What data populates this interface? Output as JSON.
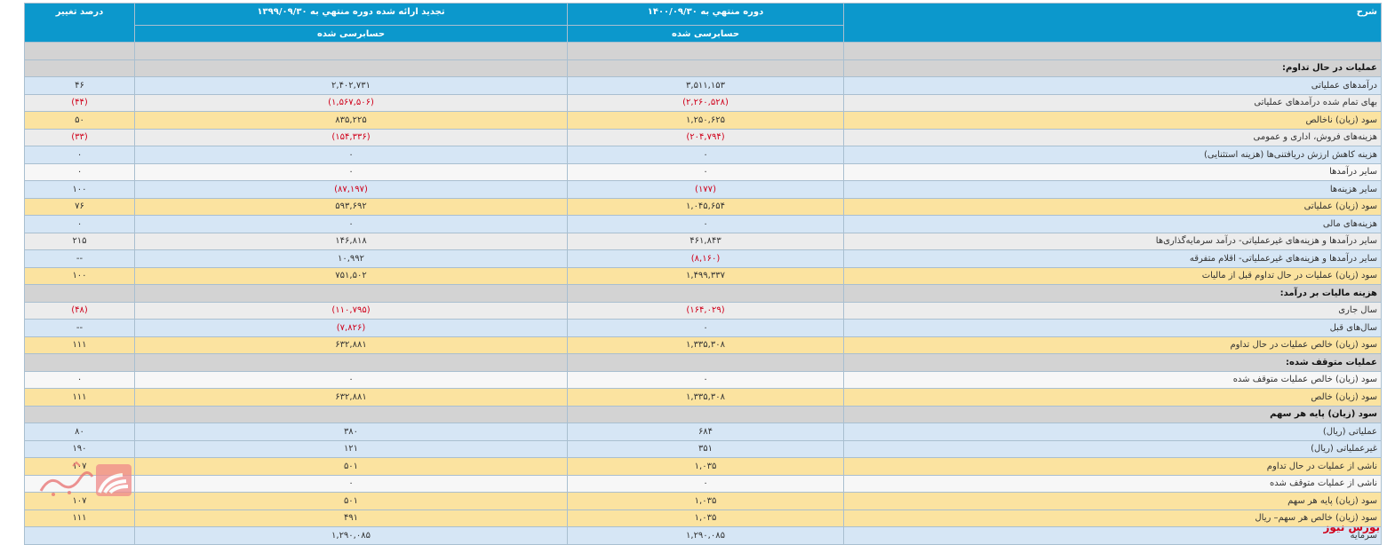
{
  "headers": {
    "desc": "شرح",
    "current_period": "دوره منتهي به ۱۴۰۰/۰۹/۳۰",
    "current_audit": "حسابرسی شده",
    "prev_period": "تجدید ارائه شده دوره منتهي به ۱۳۹۹/۰۹/۳۰",
    "prev_audit": "حسابرسی شده",
    "change_pct": "درصد تغییر"
  },
  "rows": [
    {
      "type": "section",
      "label": ""
    },
    {
      "type": "section",
      "label": "عملیات در حال تداوم:"
    },
    {
      "type": "blue",
      "label": "درآمدهای عملیاتی",
      "cur": "۳,۵۱۱,۱۵۳",
      "prev": "۲,۴۰۲,۷۳۱",
      "chg": "۴۶"
    },
    {
      "type": "gray",
      "label": "بهای تمام شده درآمدهای عملیاتی",
      "cur": "(۲,۲۶۰,۵۲۸)",
      "prev": "(۱,۵۶۷,۵۰۶)",
      "chg": "(۴۴)"
    },
    {
      "type": "yel",
      "label": "سود (زیان) ناخالص",
      "cur": "۱,۲۵۰,۶۲۵",
      "prev": "۸۳۵,۲۲۵",
      "chg": "۵۰"
    },
    {
      "type": "gray",
      "label": "هزینه‌های فروش، اداری و عمومی",
      "cur": "(۲۰۴,۷۹۴)",
      "prev": "(۱۵۴,۳۳۶)",
      "chg": "(۳۳)"
    },
    {
      "type": "blue",
      "label": "هزینه کاهش ارزش دریافتنی‌ها (هزینه استثنایی)",
      "cur": "۰",
      "prev": "۰",
      "chg": "۰"
    },
    {
      "type": "white",
      "label": "سایر درآمدها",
      "cur": "۰",
      "prev": "۰",
      "chg": "۰"
    },
    {
      "type": "blue",
      "label": "سایر هزینه‌ها",
      "cur": "(۱۷۷)",
      "prev": "(۸۷,۱۹۷)",
      "chg": "۱۰۰"
    },
    {
      "type": "yel",
      "label": "سود (زیان) عملیاتی",
      "cur": "۱,۰۴۵,۶۵۴",
      "prev": "۵۹۳,۶۹۲",
      "chg": "۷۶"
    },
    {
      "type": "blue",
      "label": "هزینه‌های مالی",
      "cur": "۰",
      "prev": "۰",
      "chg": "۰"
    },
    {
      "type": "gray",
      "label": "سایر درآمدها و هزینه‌های غیرعملیاتی- درآمد سرمایه‌گذاری‌ها",
      "cur": "۴۶۱,۸۴۳",
      "prev": "۱۴۶,۸۱۸",
      "chg": "۲۱۵"
    },
    {
      "type": "blue",
      "label": "سایر درآمدها و هزینه‌های غیرعملیاتی- اقلام متفرقه",
      "cur": "(۸,۱۶۰)",
      "prev": "۱۰,۹۹۲",
      "chg": "--"
    },
    {
      "type": "yel",
      "label": "سود (زیان) عملیات در حال تداوم قبل از مالیات",
      "cur": "۱,۴۹۹,۳۳۷",
      "prev": "۷۵۱,۵۰۲",
      "chg": "۱۰۰"
    },
    {
      "type": "section",
      "label": "هزینه مالیات بر درآمد:"
    },
    {
      "type": "gray",
      "label": "سال جاری",
      "cur": "(۱۶۴,۰۲۹)",
      "prev": "(۱۱۰,۷۹۵)",
      "chg": "(۴۸)"
    },
    {
      "type": "blue",
      "label": "سال‌های قبل",
      "cur": "۰",
      "prev": "(۷,۸۲۶)",
      "chg": "--"
    },
    {
      "type": "yel",
      "label": "سود (زیان) خالص عملیات در حال تداوم",
      "cur": "۱,۳۳۵,۳۰۸",
      "prev": "۶۳۲,۸۸۱",
      "chg": "۱۱۱"
    },
    {
      "type": "section",
      "label": "عملیات متوقف شده:"
    },
    {
      "type": "white",
      "label": "سود (زیان) خالص عملیات متوقف شده",
      "cur": "۰",
      "prev": "۰",
      "chg": "۰"
    },
    {
      "type": "yel",
      "label": "سود (زیان) خالص",
      "cur": "۱,۳۳۵,۳۰۸",
      "prev": "۶۳۲,۸۸۱",
      "chg": "۱۱۱"
    },
    {
      "type": "section",
      "label": "سود (زیان) پایه هر سهم"
    },
    {
      "type": "blue",
      "label": "عملیاتی (ریال)",
      "cur": "۶۸۴",
      "prev": "۳۸۰",
      "chg": "۸۰"
    },
    {
      "type": "blue",
      "label": "غیرعملیاتی (ریال)",
      "cur": "۳۵۱",
      "prev": "۱۲۱",
      "chg": "۱۹۰"
    },
    {
      "type": "yel",
      "label": "ناشی از عملیات در حال تداوم",
      "cur": "۱,۰۳۵",
      "prev": "۵۰۱",
      "chg": "۱۰۷"
    },
    {
      "type": "white",
      "label": "ناشی از عملیات متوقف شده",
      "cur": "۰",
      "prev": "۰",
      "chg": ""
    },
    {
      "type": "yel",
      "label": "سود (زیان) پایه هر سهم",
      "cur": "۱,۰۳۵",
      "prev": "۵۰۱",
      "chg": "۱۰۷"
    },
    {
      "type": "yel",
      "label": "سود (زیان) خالص هر سهم– ریال",
      "cur": "۱,۰۳۵",
      "prev": "۴۹۱",
      "chg": "۱۱۱"
    },
    {
      "type": "blue",
      "label": "سرمایه",
      "cur": "۱,۲۹۰,۰۸۵",
      "prev": "۱,۲۹۰,۰۸۵",
      "chg": ""
    }
  ],
  "brand": "بورس نیوز",
  "colors": {
    "header": "#0c98cc",
    "negative": "#d0021b",
    "section": "#d3d3d3",
    "highlight": "#fbe3a0",
    "blue_row": "#d6e6f5"
  }
}
